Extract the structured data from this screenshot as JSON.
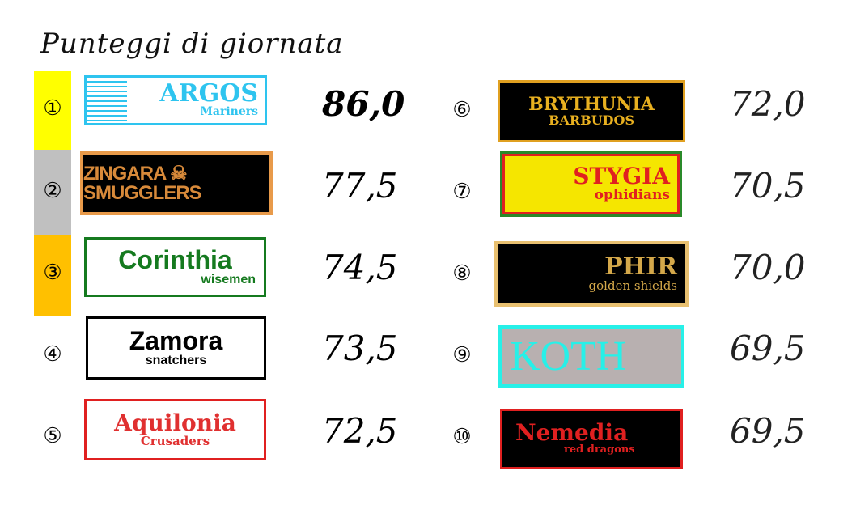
{
  "title": "Punteggi di giornata",
  "colors": {
    "first": "#ffff00",
    "second": "#c0c0c0",
    "third": "#ffc000"
  },
  "teams": [
    {
      "rank": "①",
      "name": "ARGOS",
      "sub": "Mariners",
      "score": "86,0"
    },
    {
      "rank": "②",
      "name": "ZINGARA ☠ SMUGGLERS",
      "sub": "",
      "score": "77,5"
    },
    {
      "rank": "③",
      "name": "Corinthia",
      "sub": "wisemen",
      "score": "74,5"
    },
    {
      "rank": "④",
      "name": "Zamora",
      "sub": "snatchers",
      "score": "73,5"
    },
    {
      "rank": "⑤",
      "name": "Aquilonia",
      "sub": "Crusaders",
      "score": "72,5"
    },
    {
      "rank": "⑥",
      "name": "BRYTHUNIA",
      "sub": "BARBUDOS",
      "score": "72,0"
    },
    {
      "rank": "⑦",
      "name": "STYGIA",
      "sub": "ophidians",
      "score": "70,5"
    },
    {
      "rank": "⑧",
      "name": "PHIR",
      "sub": "golden shields",
      "score": "70,0"
    },
    {
      "rank": "⑨",
      "name": "KOTH",
      "sub": "",
      "score": "69,5"
    },
    {
      "rank": "⑩",
      "name": "Nemedia",
      "sub": "red dragons",
      "score": "69,5"
    }
  ]
}
